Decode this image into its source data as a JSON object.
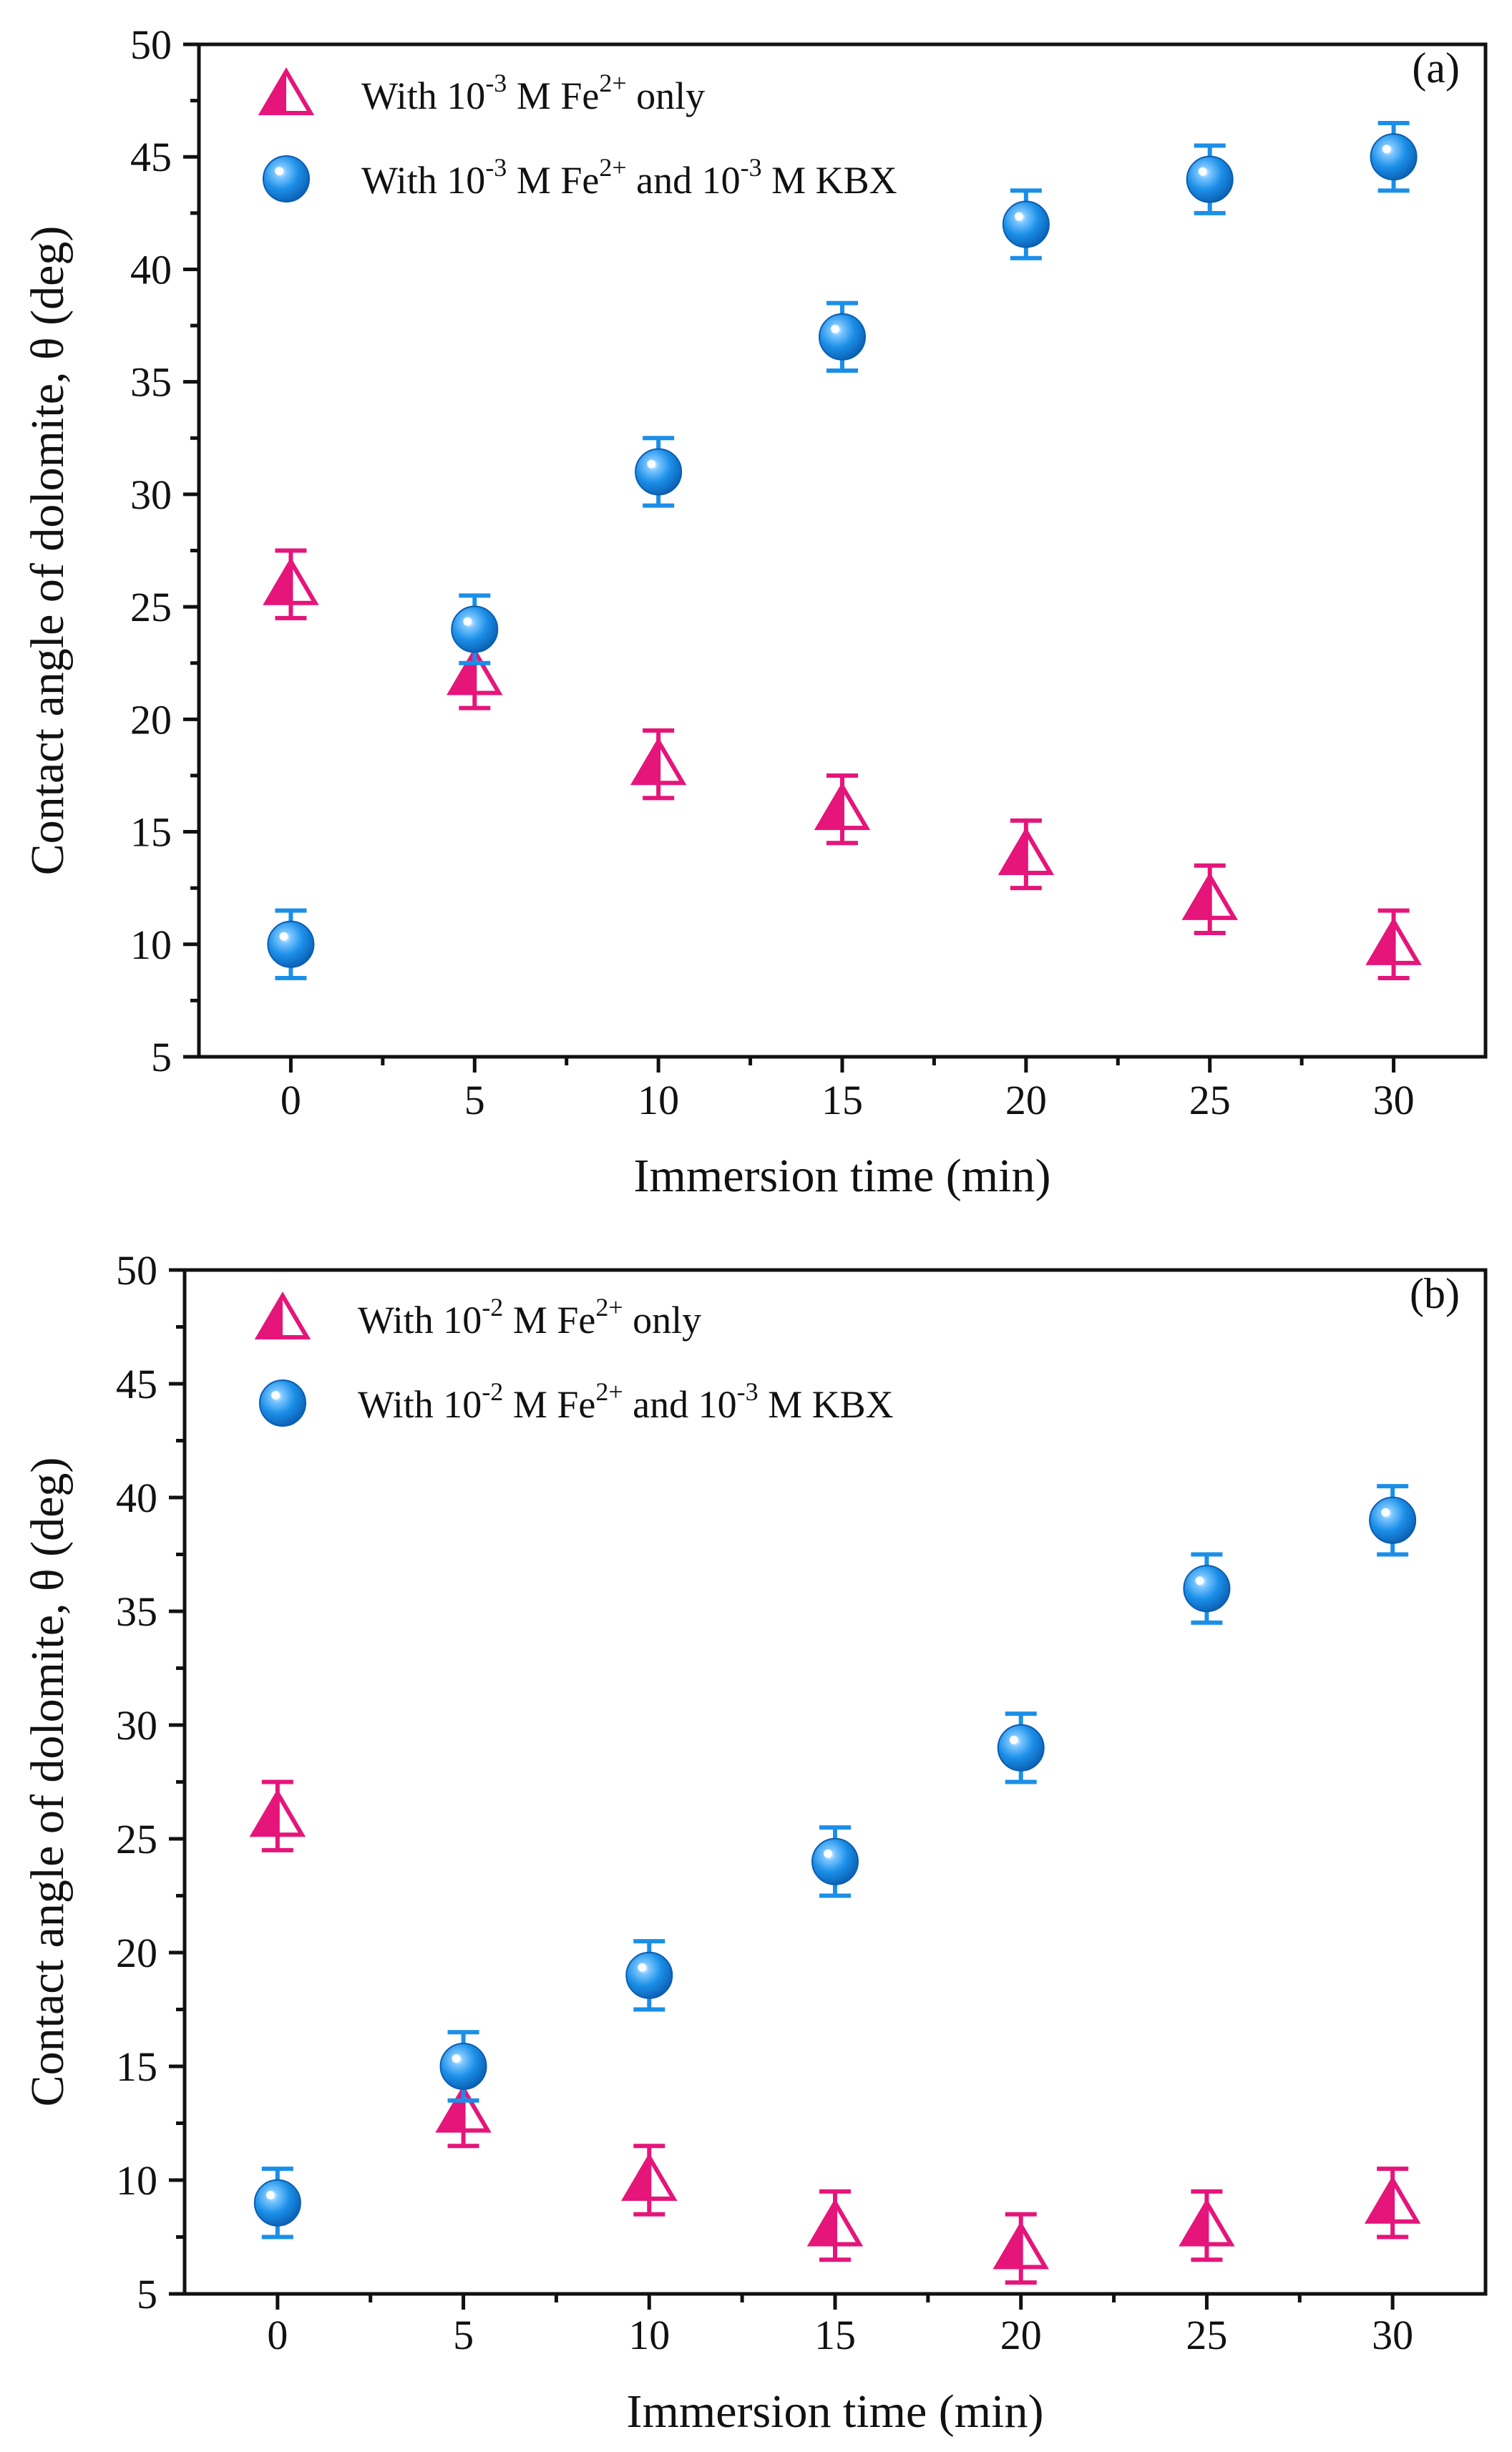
{
  "colors": {
    "blue": "#1b8fe8",
    "blue_dark": "#0a5db0",
    "magenta": "#e5157a",
    "axis": "#111111",
    "background": "#ffffff"
  },
  "chart_data": [
    {
      "type": "scatter",
      "panel_label": "(a)",
      "xlabel": "Immersion time (min)",
      "ylabel": "Contact angle of dolomite, θ (deg)",
      "xlim": [
        -2.5,
        32.5
      ],
      "ylim": [
        5,
        50
      ],
      "x_ticks": [
        0,
        5,
        10,
        15,
        20,
        25,
        30
      ],
      "y_ticks": [
        5,
        10,
        15,
        20,
        25,
        30,
        35,
        40,
        45,
        50
      ],
      "legend_position": "top-left",
      "series": [
        {
          "name": "With 10-3 M Fe2+ only",
          "legend_parts": [
            "With 10",
            "-3",
            " M Fe",
            "2+",
            " only"
          ],
          "marker": "half-filled-triangle",
          "color": "#e5157a",
          "x": [
            0,
            5,
            10,
            15,
            20,
            25,
            30
          ],
          "y": [
            26,
            22,
            18,
            16,
            14,
            12,
            10
          ],
          "error": [
            1.5,
            1.5,
            1.5,
            1.5,
            1.5,
            1.5,
            1.5
          ]
        },
        {
          "name": "With 10-3 M Fe2+ and 10-3 M KBX",
          "legend_parts": [
            "With 10",
            "-3",
            " M Fe",
            "2+",
            " and 10",
            "-3",
            " M KBX"
          ],
          "marker": "sphere",
          "color": "#1b8fe8",
          "x": [
            0,
            5,
            10,
            15,
            20,
            25,
            30
          ],
          "y": [
            10,
            24,
            31,
            37,
            42,
            44,
            45
          ],
          "error": [
            1.5,
            1.5,
            1.5,
            1.5,
            1.5,
            1.5,
            1.5
          ]
        }
      ]
    },
    {
      "type": "scatter",
      "panel_label": "(b)",
      "xlabel": "Immersion time (min)",
      "ylabel": "Contact angle of dolomite, θ (deg)",
      "xlim": [
        -2.5,
        32.5
      ],
      "ylim": [
        5,
        50
      ],
      "x_ticks": [
        0,
        5,
        10,
        15,
        20,
        25,
        30
      ],
      "y_ticks": [
        5,
        10,
        15,
        20,
        25,
        30,
        35,
        40,
        45,
        50
      ],
      "legend_position": "top-left",
      "series": [
        {
          "name": "With 10-2 M Fe2+ only",
          "legend_parts": [
            "With 10",
            "-2",
            " M Fe",
            "2+",
            " only"
          ],
          "marker": "half-filled-triangle",
          "color": "#e5157a",
          "x": [
            0,
            5,
            10,
            15,
            20,
            25,
            30
          ],
          "y": [
            26,
            13,
            10,
            8,
            7,
            8,
            9
          ],
          "error": [
            1.5,
            1.5,
            1.5,
            1.5,
            1.5,
            1.5,
            1.5
          ]
        },
        {
          "name": "With 10-2 M Fe2+ and 10-3 M KBX",
          "legend_parts": [
            "With 10",
            "-2",
            " M Fe",
            "2+",
            " and 10",
            "-3",
            " M KBX"
          ],
          "marker": "sphere",
          "color": "#1b8fe8",
          "x": [
            0,
            5,
            10,
            15,
            20,
            25,
            30
          ],
          "y": [
            9,
            15,
            19,
            24,
            29,
            36,
            39
          ],
          "error": [
            1.5,
            1.5,
            1.5,
            1.5,
            1.5,
            1.5,
            1.5
          ]
        }
      ]
    }
  ]
}
